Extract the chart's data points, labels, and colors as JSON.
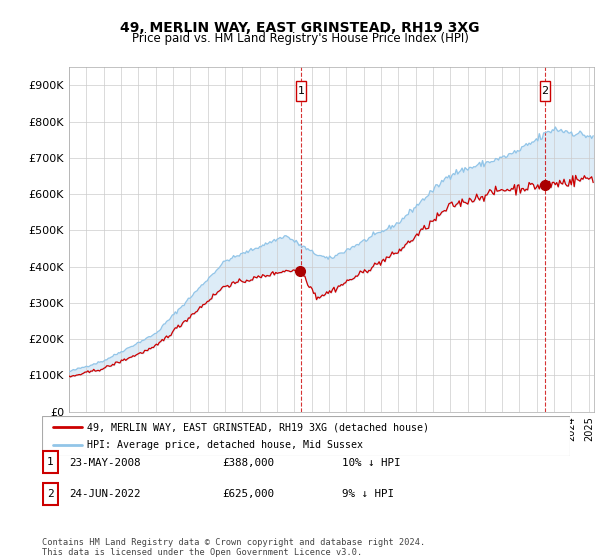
{
  "title": "49, MERLIN WAY, EAST GRINSTEAD, RH19 3XG",
  "subtitle": "Price paid vs. HM Land Registry's House Price Index (HPI)",
  "legend_label_red": "49, MERLIN WAY, EAST GRINSTEAD, RH19 3XG (detached house)",
  "legend_label_blue": "HPI: Average price, detached house, Mid Sussex",
  "sale1_label": "1",
  "sale1_date": "23-MAY-2008",
  "sale1_price": "£388,000",
  "sale1_hpi": "10% ↓ HPI",
  "sale2_label": "2",
  "sale2_date": "24-JUN-2022",
  "sale2_price": "£625,000",
  "sale2_hpi": "9% ↓ HPI",
  "footer": "Contains HM Land Registry data © Crown copyright and database right 2024.\nThis data is licensed under the Open Government Licence v3.0.",
  "hpi_color": "#92c5e8",
  "hpi_fill_color": "#daeaf7",
  "price_color": "#cc0000",
  "sale_marker_color": "#aa0000",
  "background_color": "#ffffff",
  "ylim": [
    0,
    950000
  ],
  "yticks": [
    0,
    100000,
    200000,
    300000,
    400000,
    500000,
    600000,
    700000,
    800000,
    900000
  ],
  "ytick_labels": [
    "£0",
    "£100K",
    "£200K",
    "£300K",
    "£400K",
    "£500K",
    "£600K",
    "£700K",
    "£800K",
    "£900K"
  ],
  "sale1_year": 2008.39,
  "sale2_year": 2022.48,
  "sale1_value": 388000,
  "sale2_value": 625000,
  "xmin": 1995,
  "xmax": 2025.3
}
